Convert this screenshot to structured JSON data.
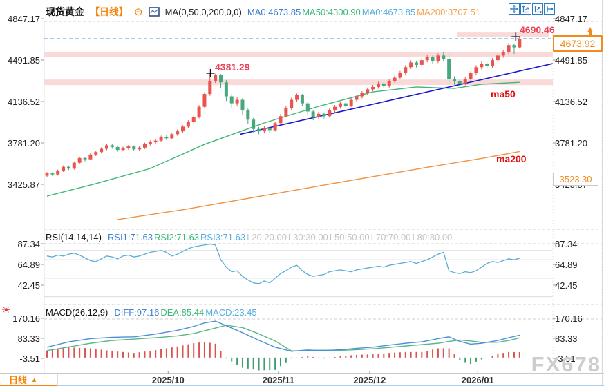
{
  "header": {
    "symbol": "现货黄金",
    "period_tag": "【日线】",
    "collapse_icon": "⊖",
    "ma_formula": "MA(0,50,0,200,0,0)",
    "ma_tokens": [
      {
        "label": "MA0:4673.85",
        "color": "#3f7fd4"
      },
      {
        "label": "MA50:4300.90",
        "color": "#3cb878"
      },
      {
        "label": "MA0:4673.85",
        "color": "#55aee0"
      },
      {
        "label": "MA200:3707.51",
        "color": "#f5a352"
      }
    ]
  },
  "toolbar": {
    "icons": [
      "pan-move-icon",
      "scale-price-axis-icon",
      "scale-time-axis-icon",
      "go-to-latest-icon"
    ]
  },
  "main_pane": {
    "y_axis_labels": [
      "4847.17",
      "4491.85",
      "4136.52",
      "3781.20",
      "3425.87"
    ],
    "annotations": {
      "high_label": "4690.46",
      "peak_label": "4381.29",
      "ma50_label": "ma50",
      "ma200_label": "ma200",
      "current_price": "4673.92",
      "support_label": "3523.30"
    }
  },
  "rsi_pane": {
    "title": "RSI(14,14,14)",
    "tokens": [
      {
        "label": "RSI1:71.63",
        "color": "#3f7fd4"
      },
      {
        "label": "RSI2:71.63",
        "color": "#3cb878"
      },
      {
        "label": "RSI3:71.63",
        "color": "#55aee0"
      },
      {
        "label": "L20:20.00",
        "color": "#c4c4c4"
      },
      {
        "label": "L30:30.00",
        "color": "#c4c4c4"
      },
      {
        "label": "L50:50.00",
        "color": "#c4c4c4"
      },
      {
        "label": "L70:70.00",
        "color": "#c4c4c4"
      },
      {
        "label": "L80:80.00",
        "color": "#c4c4c4"
      }
    ],
    "y_axis_labels": [
      "87.34",
      "64.89",
      "42.45"
    ]
  },
  "macd_pane": {
    "title": "MACD(26,12,9)",
    "tokens": [
      {
        "label": "DIFF:97.16",
        "color": "#3f7fd4"
      },
      {
        "label": "DEA:85.44",
        "color": "#3cb878"
      },
      {
        "label": "MACD:23.45",
        "color": "#55aee0"
      }
    ],
    "y_axis_labels": [
      "170.16",
      "83.33",
      "-3.51"
    ]
  },
  "x_axis": {
    "labels": [
      "2025/10",
      "2025/11",
      "2025/12",
      "2026/01"
    ],
    "tab": "日线"
  },
  "watermark": "FX678",
  "colors": {
    "up": "#e8544e",
    "down": "#46a87c",
    "ma50_line": "#3cb878",
    "ma200_line": "#f0923f",
    "trendline": "#1a1acc",
    "price_dash": "#3a99e8",
    "zone_fill": "rgba(242,160,160,0.40)",
    "rsi_line": "#58add6",
    "macd_diff": "#4a90d9",
    "macd_dea": "#57b784",
    "hist_pos": "#d9544f",
    "hist_neg": "#3f9e6e",
    "accent_orange": "#f08c1e",
    "annotation_red": "#e84458",
    "ma_label_red": "#e01010"
  },
  "chart_data": {
    "type": "candlestick+indicators",
    "title": "现货黄金 日线 (Spot Gold, Daily)",
    "x_labels": [
      "2025/10",
      "2025/11",
      "2025/12",
      "2026/01"
    ],
    "x_label_indices": [
      22.3,
      42.6,
      59.4,
      79.3
    ],
    "price_ticks": [
      4847.17,
      4491.85,
      4136.52,
      3781.2,
      3425.87
    ],
    "current_price": 4673.92,
    "session_high": 4690.46,
    "peak_price": 4381.29,
    "support_price": 3523.3,
    "ma_current": {
      "ma0": 4673.85,
      "ma50": 4300.9,
      "ma200": 3707.51
    },
    "candles": [
      [
        3500,
        3520,
        3487,
        3531
      ],
      [
        3520,
        3511,
        3496,
        3529
      ],
      [
        3511,
        3542,
        3501,
        3553
      ],
      [
        3542,
        3576,
        3533,
        3588
      ],
      [
        3576,
        3561,
        3549,
        3586
      ],
      [
        3561,
        3611,
        3553,
        3623
      ],
      [
        3611,
        3652,
        3601,
        3664
      ],
      [
        3652,
        3641,
        3623,
        3659
      ],
      [
        3641,
        3682,
        3633,
        3694
      ],
      [
        3682,
        3703,
        3669,
        3716
      ],
      [
        3703,
        3731,
        3691,
        3743
      ],
      [
        3731,
        3761,
        3719,
        3776
      ],
      [
        3761,
        3746,
        3731,
        3773
      ],
      [
        3746,
        3721,
        3706,
        3753
      ],
      [
        3721,
        3736,
        3709,
        3749
      ],
      [
        3736,
        3751,
        3723,
        3763
      ],
      [
        3751,
        3726,
        3711,
        3759
      ],
      [
        3726,
        3741,
        3716,
        3753
      ],
      [
        3741,
        3771,
        3729,
        3783
      ],
      [
        3771,
        3791,
        3759,
        3803
      ],
      [
        3791,
        3801,
        3776,
        3816
      ],
      [
        3801,
        3831,
        3791,
        3843
      ],
      [
        3831,
        3821,
        3806,
        3846
      ],
      [
        3821,
        3856,
        3813,
        3869
      ],
      [
        3856,
        3881,
        3843,
        3896
      ],
      [
        3881,
        3921,
        3869,
        3933
      ],
      [
        3921,
        3961,
        3906,
        3976
      ],
      [
        3961,
        4001,
        3949,
        4016
      ],
      [
        4001,
        4091,
        3991,
        4106
      ],
      [
        4091,
        4201,
        4081,
        4216
      ],
      [
        4201,
        4311,
        4186,
        4381.29
      ],
      [
        4311,
        4361,
        4296,
        4375
      ],
      [
        4361,
        4301,
        4256,
        4372
      ],
      [
        4301,
        4181,
        4141,
        4321
      ],
      [
        4181,
        4121,
        4081,
        4201
      ],
      [
        4121,
        4151,
        4096,
        4176
      ],
      [
        4151,
        4061,
        4021,
        4166
      ],
      [
        4061,
        3981,
        3946,
        4076
      ],
      [
        3981,
        3901,
        3871,
        3996
      ],
      [
        3901,
        3881,
        3856,
        3919
      ],
      [
        3881,
        3911,
        3863,
        3929
      ],
      [
        3911,
        3891,
        3869,
        3923
      ],
      [
        3891,
        3951,
        3879,
        3966
      ],
      [
        3951,
        4011,
        3939,
        4029
      ],
      [
        4011,
        4081,
        3999,
        4096
      ],
      [
        4081,
        4151,
        4066,
        4169
      ],
      [
        4151,
        4191,
        4136,
        4206
      ],
      [
        4191,
        4121,
        4096,
        4201
      ],
      [
        4121,
        4051,
        4021,
        4136
      ],
      [
        4051,
        4001,
        3976,
        4066
      ],
      [
        4001,
        4031,
        3986,
        4049
      ],
      [
        4031,
        4011,
        3991,
        4043
      ],
      [
        4011,
        4061,
        3999,
        4076
      ],
      [
        4061,
        4091,
        4046,
        4106
      ],
      [
        4091,
        4121,
        4076,
        4136
      ],
      [
        4121,
        4101,
        4081,
        4133
      ],
      [
        4101,
        4151,
        4089,
        4166
      ],
      [
        4151,
        4181,
        4136,
        4196
      ],
      [
        4181,
        4211,
        4163,
        4226
      ],
      [
        4211,
        4241,
        4196,
        4256
      ],
      [
        4241,
        4261,
        4226,
        4279
      ],
      [
        4261,
        4291,
        4246,
        4306
      ],
      [
        4291,
        4271,
        4251,
        4303
      ],
      [
        4271,
        4311,
        4256,
        4329
      ],
      [
        4311,
        4341,
        4296,
        4359
      ],
      [
        4341,
        4381,
        4326,
        4399
      ],
      [
        4381,
        4431,
        4366,
        4449
      ],
      [
        4431,
        4471,
        4416,
        4489
      ],
      [
        4471,
        4451,
        4429,
        4483
      ],
      [
        4451,
        4491,
        4436,
        4509
      ],
      [
        4491,
        4521,
        4473,
        4539
      ],
      [
        4521,
        4481,
        4455,
        4531
      ],
      [
        4481,
        4531,
        4466,
        4549
      ],
      [
        4531,
        4501,
        4479,
        4561
      ],
      [
        4501,
        4331,
        4291,
        4546
      ],
      [
        4331,
        4311,
        4281,
        4353
      ],
      [
        4311,
        4291,
        4263,
        4326
      ],
      [
        4291,
        4331,
        4276,
        4349
      ],
      [
        4331,
        4381,
        4316,
        4396
      ],
      [
        4381,
        4431,
        4363,
        4449
      ],
      [
        4431,
        4461,
        4413,
        4479
      ],
      [
        4461,
        4441,
        4419,
        4473
      ],
      [
        4441,
        4491,
        4426,
        4509
      ],
      [
        4491,
        4531,
        4473,
        4549
      ],
      [
        4531,
        4561,
        4513,
        4579
      ],
      [
        4561,
        4621,
        4543,
        4639
      ],
      [
        4621,
        4601,
        4546,
        4633
      ],
      [
        4601,
        4673.92,
        4591,
        4690.46
      ]
    ],
    "ma50_points": [
      [
        0,
        3325
      ],
      [
        9,
        3432
      ],
      [
        19,
        3562
      ],
      [
        29,
        3769
      ],
      [
        40,
        3953
      ],
      [
        50,
        4095
      ],
      [
        60,
        4219
      ],
      [
        68,
        4261
      ],
      [
        75,
        4249
      ],
      [
        80,
        4285
      ],
      [
        87,
        4301
      ]
    ],
    "ma200_points": [
      [
        13,
        3124
      ],
      [
        25,
        3208
      ],
      [
        40,
        3330
      ],
      [
        55,
        3452
      ],
      [
        70,
        3572
      ],
      [
        80,
        3648
      ],
      [
        87,
        3707.51
      ]
    ],
    "trendline": {
      "from_idx": 35.5,
      "from_price": 3855,
      "to_idx": 93.1,
      "to_price": 4462
    },
    "zones": [
      {
        "price_from": 4515,
        "price_to": 4563,
        "start_idx": null
      },
      {
        "price_from": 4278,
        "price_to": 4325,
        "start_idx": null
      },
      {
        "price_from": 4693,
        "price_to": 4728,
        "start_idx": 75.5
      }
    ],
    "cross_markers": [
      {
        "idx": 30.1,
        "price": 4380
      },
      {
        "idx": 86.3,
        "price": 4692
      }
    ],
    "rsi": {
      "grid_levels": [
        80,
        70,
        50,
        30
      ],
      "axis_ticks": [
        87.34,
        64.89,
        42.45
      ],
      "values": [
        74,
        73,
        75,
        74,
        76,
        77,
        75,
        72,
        69,
        68,
        71,
        74,
        73,
        71,
        74,
        75,
        73,
        74,
        76,
        78,
        79,
        80,
        78,
        74,
        76,
        79,
        82,
        84,
        85,
        86,
        87,
        86,
        70,
        62,
        57,
        58,
        52,
        48,
        45,
        44,
        47,
        45,
        50,
        55,
        58,
        62,
        64,
        58,
        54,
        52,
        53,
        54,
        57,
        58,
        59,
        58,
        57,
        59,
        60,
        61,
        62,
        63,
        62,
        64,
        65,
        66,
        67,
        68,
        66,
        68,
        70,
        73,
        76,
        78,
        58,
        56,
        55,
        57,
        56,
        58,
        62,
        66,
        68,
        67,
        69,
        71,
        70,
        71.63
      ]
    },
    "macd": {
      "axis_ticks": [
        170.16,
        83.33,
        -3.51
      ],
      "hist_multiplier": 2,
      "diff_points": [
        [
          0,
          45
        ],
        [
          4,
          68
        ],
        [
          8,
          82
        ],
        [
          12,
          88
        ],
        [
          16,
          90
        ],
        [
          20,
          102
        ],
        [
          24,
          118
        ],
        [
          27,
          135
        ],
        [
          29,
          150
        ],
        [
          31,
          158
        ],
        [
          33,
          138
        ],
        [
          36,
          108
        ],
        [
          39,
          75
        ],
        [
          42,
          45
        ],
        [
          45,
          27
        ],
        [
          48,
          33
        ],
        [
          51,
          30
        ],
        [
          54,
          34
        ],
        [
          57,
          40
        ],
        [
          60,
          45
        ],
        [
          63,
          54
        ],
        [
          66,
          62
        ],
        [
          69,
          68
        ],
        [
          72,
          82
        ],
        [
          74,
          90
        ],
        [
          76,
          70
        ],
        [
          78,
          58
        ],
        [
          80,
          62
        ],
        [
          83,
          74
        ],
        [
          85,
          86
        ],
        [
          87,
          97.16
        ]
      ],
      "dea_points": [
        [
          0,
          30
        ],
        [
          4,
          46
        ],
        [
          8,
          62
        ],
        [
          12,
          74
        ],
        [
          16,
          80
        ],
        [
          20,
          86
        ],
        [
          24,
          94
        ],
        [
          27,
          104
        ],
        [
          29,
          116
        ],
        [
          31,
          128
        ],
        [
          33,
          140
        ],
        [
          36,
          130
        ],
        [
          39,
          103
        ],
        [
          42,
          72
        ],
        [
          45,
          29
        ],
        [
          48,
          30
        ],
        [
          51,
          32
        ],
        [
          54,
          31
        ],
        [
          57,
          34
        ],
        [
          60,
          38
        ],
        [
          63,
          44
        ],
        [
          66,
          50
        ],
        [
          69,
          56
        ],
        [
          72,
          62
        ],
        [
          74,
          70
        ],
        [
          76,
          76
        ],
        [
          78,
          72
        ],
        [
          80,
          66
        ],
        [
          83,
          66
        ],
        [
          85,
          74
        ],
        [
          87,
          85.44
        ]
      ]
    }
  }
}
